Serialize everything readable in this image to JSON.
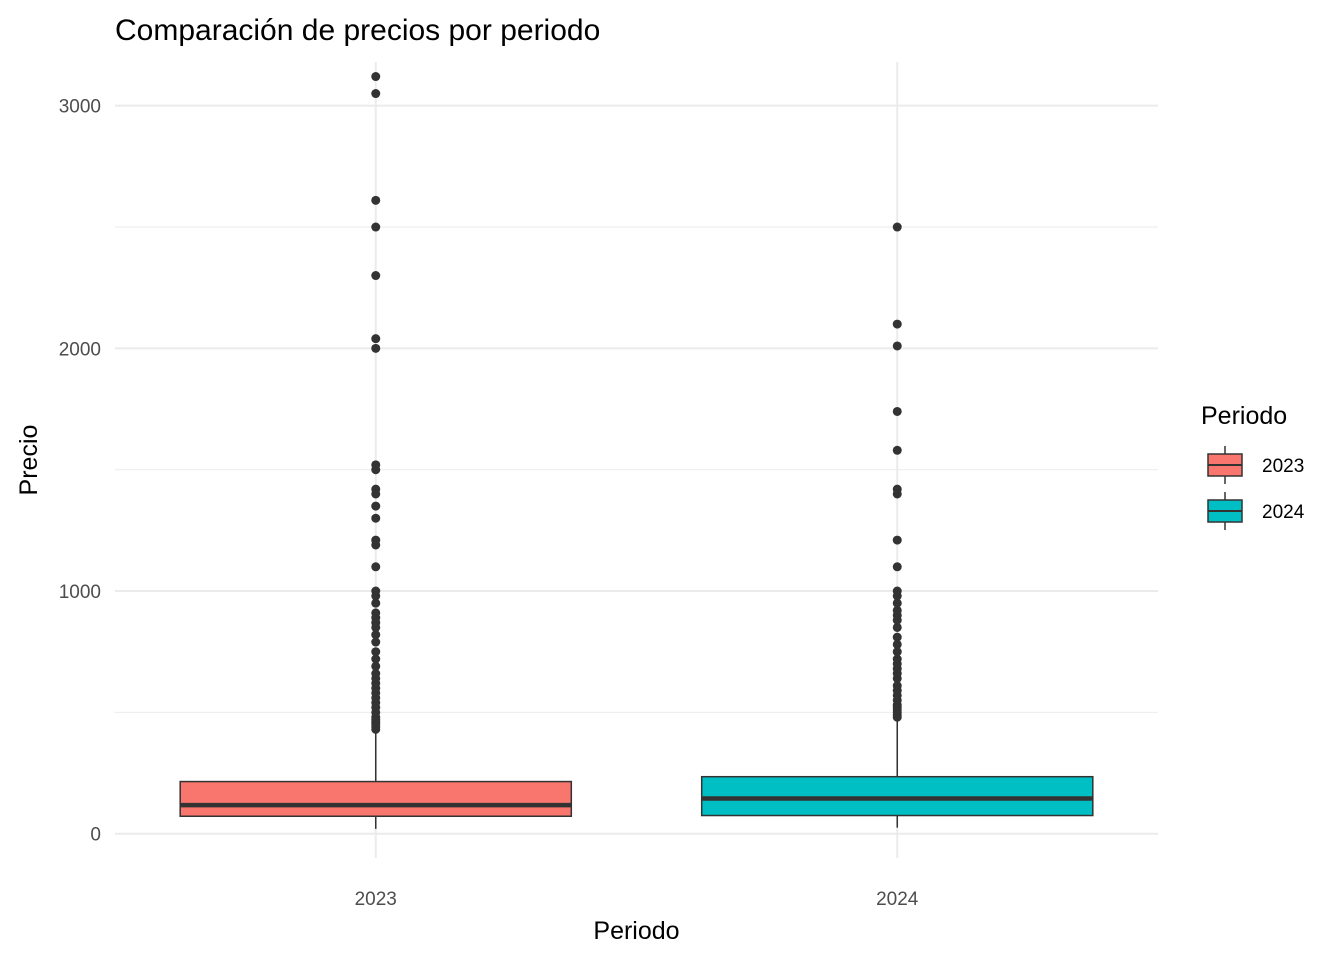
{
  "chart_data": {
    "type": "box",
    "title": "Comparación de precios por periodo",
    "xlabel": "Periodo",
    "ylabel": "Precio",
    "ylim": [
      -100,
      3180
    ],
    "y_ticks": [
      0,
      1000,
      2000,
      3000
    ],
    "y_tick_labels": [
      "0",
      "1000",
      "2000",
      "3000"
    ],
    "grid": true,
    "legend": {
      "title": "Periodo",
      "position": "right",
      "entries": [
        {
          "label": "2023",
          "color": "#F8766D"
        },
        {
          "label": "2024",
          "color": "#00BFC4"
        }
      ]
    },
    "series": [
      {
        "category": "2023",
        "color": "#F8766D",
        "min": 20,
        "q1": 72,
        "median": 118,
        "q3": 215,
        "max": 420,
        "outliers": [
          430,
          440,
          450,
          460,
          470,
          480,
          500,
          520,
          540,
          560,
          580,
          600,
          620,
          640,
          660,
          690,
          720,
          750,
          790,
          820,
          850,
          870,
          890,
          910,
          950,
          980,
          1000,
          1100,
          1190,
          1210,
          1300,
          1350,
          1400,
          1420,
          1500,
          1520,
          2000,
          2040,
          2300,
          2500,
          2610,
          3050,
          3120
        ]
      },
      {
        "category": "2024",
        "color": "#00BFC4",
        "min": 25,
        "q1": 75,
        "median": 145,
        "q3": 235,
        "max": 470,
        "outliers": [
          480,
          490,
          500,
          510,
          520,
          530,
          550,
          570,
          590,
          610,
          640,
          660,
          680,
          700,
          720,
          750,
          780,
          810,
          850,
          880,
          900,
          920,
          950,
          980,
          1000,
          1100,
          1210,
          1400,
          1420,
          1580,
          1740,
          2010,
          2100,
          2500
        ]
      }
    ]
  }
}
